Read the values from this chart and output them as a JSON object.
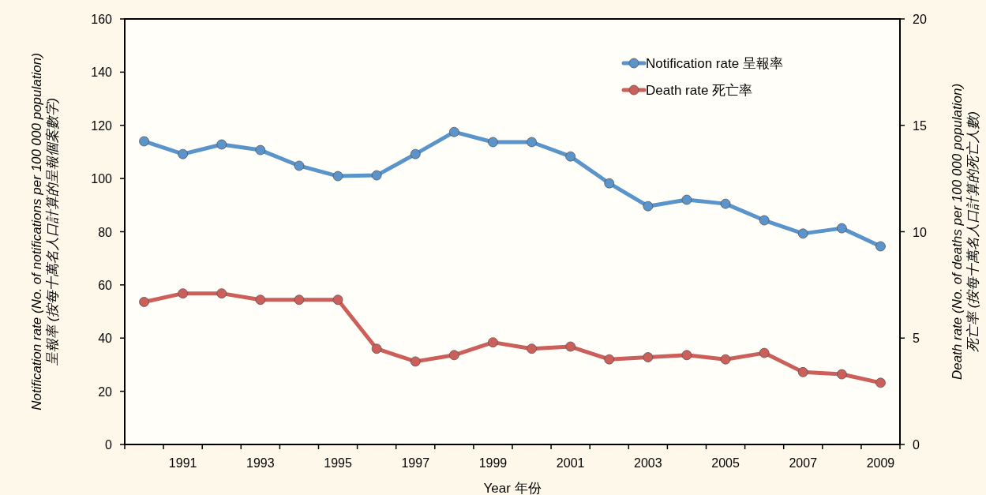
{
  "chart_data": {
    "type": "line",
    "xlabel": "Year 年份",
    "ylabel": "Notification rate (No. of notifications per 100 000 population)\n呈報率 (按每十萬名人口計算的呈報個案數字)",
    "y2label": "Death rate (No. of deaths per 100 000 population)\n死亡率 (按每十萬名人口計算的死亡人數)",
    "categories": [
      null,
      "1991",
      null,
      "1993",
      null,
      "1995",
      null,
      "1997",
      null,
      "1999",
      null,
      "2001",
      null,
      "2003",
      null,
      "2005",
      null,
      "2007",
      null,
      "2009"
    ],
    "series": [
      {
        "name": "Notification rate 呈報率",
        "color": "#5a94cb",
        "values": [
          114,
          109.2,
          112.8,
          110.7,
          104.8,
          100.9,
          101.2,
          109.2,
          117.5,
          113.7,
          113.7,
          108.3,
          98.2,
          89.6,
          92,
          90.5,
          84.3,
          79.3,
          81.3,
          74.5
        ]
      },
      {
        "name": "Death rate 死亡率",
        "color": "#cd5f5a",
        "axis": "y2",
        "values": [
          6.7,
          7.1,
          7.1,
          6.8,
          6.8,
          6.8,
          4.5,
          3.9,
          4.2,
          4.8,
          4.5,
          4.6,
          4.0,
          4.1,
          4.2,
          4.0,
          4.3,
          3.4,
          3.3,
          2.9
        ]
      }
    ],
    "ylim": [
      0,
      160
    ],
    "yticks": [
      0,
      20,
      40,
      60,
      80,
      100,
      120,
      140,
      160
    ],
    "y2lim": [
      0,
      20
    ],
    "y2ticks": [
      0,
      5,
      10,
      15,
      20
    ],
    "legend": "top right",
    "marker": "circle",
    "line_style": "solid",
    "grid": false
  }
}
